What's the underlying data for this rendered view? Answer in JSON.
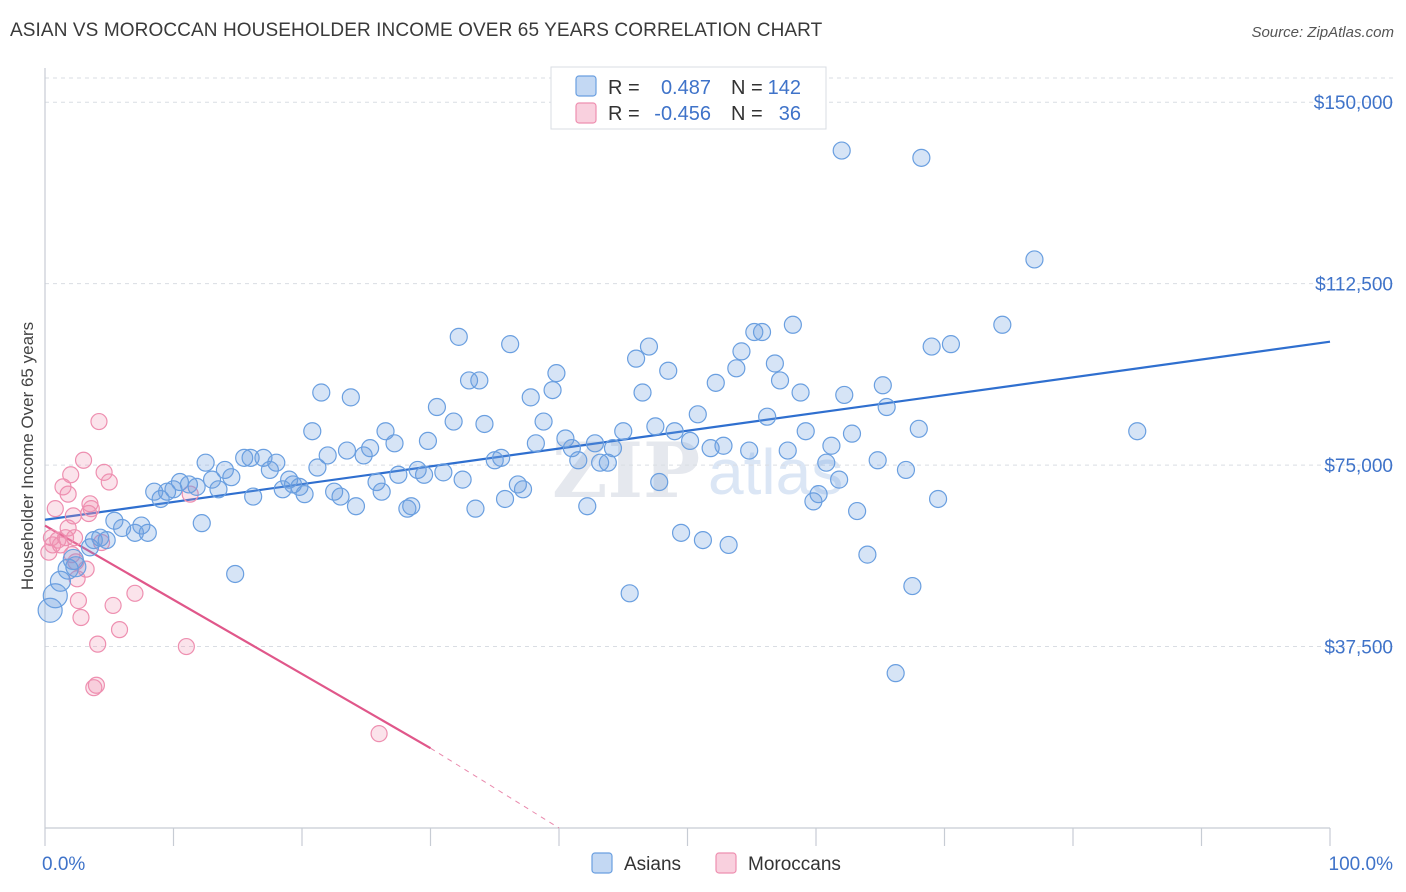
{
  "header": {
    "title": "ASIAN VS MOROCCAN HOUSEHOLDER INCOME OVER 65 YEARS CORRELATION CHART",
    "source": "Source: ZipAtlas.com"
  },
  "watermark": {
    "zip": "ZIP",
    "atlas": "atlas"
  },
  "colors": {
    "asian": "#6a9fe0",
    "asian_line": "#2f6fcf",
    "moroccan": "#ee8fb0",
    "moroccan_line": "#e0578a",
    "grid": "#d9dde3",
    "axis_label": "#3f73c9"
  },
  "legend": {
    "rows": [
      {
        "r_label": "R =",
        "r_value": "0.487",
        "n_label": "N =",
        "n_value": "142"
      },
      {
        "r_label": "R =",
        "r_value": "-0.456",
        "n_label": "N =",
        "n_value": "36"
      }
    ]
  },
  "bottom_legend": {
    "asians": "Asians",
    "moroccans": "Moroccans"
  },
  "chart_data": {
    "type": "scatter",
    "title": "ASIAN VS MOROCCAN HOUSEHOLDER INCOME OVER 65 YEARS CORRELATION CHART",
    "xlabel": "",
    "ylabel": "Householder Income Over 65 years",
    "xlim": [
      0,
      100
    ],
    "ylim": [
      0,
      155000
    ],
    "x_tick_labels": [
      "0.0%",
      "100.0%"
    ],
    "y_ticks": [
      37500,
      75000,
      112500,
      150000
    ],
    "y_tick_labels": [
      "$37,500",
      "$75,000",
      "$112,500",
      "$150,000"
    ],
    "grid": true,
    "legend_placement": "top-center",
    "series": [
      {
        "name": "Asians",
        "r": 0.487,
        "n": 142,
        "trend": {
          "x": [
            0,
            100
          ],
          "y": [
            63700,
            100500
          ]
        },
        "points": [
          [
            0.4,
            45000
          ],
          [
            0.8,
            48000
          ],
          [
            1.2,
            51000
          ],
          [
            1.8,
            53500
          ],
          [
            2.2,
            55500
          ],
          [
            2.4,
            54000
          ],
          [
            3.5,
            58000
          ],
          [
            3.8,
            59500
          ],
          [
            4.3,
            60000
          ],
          [
            4.8,
            59500
          ],
          [
            5.4,
            63500
          ],
          [
            6.0,
            62000
          ],
          [
            7.0,
            61000
          ],
          [
            7.5,
            62500
          ],
          [
            8.0,
            61000
          ],
          [
            8.5,
            69500
          ],
          [
            9.0,
            68000
          ],
          [
            9.5,
            69500
          ],
          [
            10.0,
            70000
          ],
          [
            10.5,
            71500
          ],
          [
            11.2,
            71000
          ],
          [
            11.8,
            70500
          ],
          [
            12.2,
            63000
          ],
          [
            12.5,
            75500
          ],
          [
            13.0,
            72000
          ],
          [
            13.5,
            70000
          ],
          [
            14.0,
            74000
          ],
          [
            14.5,
            72500
          ],
          [
            14.8,
            52500
          ],
          [
            15.5,
            76500
          ],
          [
            16.0,
            76500
          ],
          [
            16.2,
            68500
          ],
          [
            17.0,
            76500
          ],
          [
            17.5,
            74000
          ],
          [
            18.0,
            75500
          ],
          [
            18.5,
            70000
          ],
          [
            19.0,
            72000
          ],
          [
            19.3,
            71000
          ],
          [
            19.8,
            70500
          ],
          [
            20.2,
            69000
          ],
          [
            20.8,
            82000
          ],
          [
            21.2,
            74500
          ],
          [
            21.5,
            90000
          ],
          [
            22.0,
            77000
          ],
          [
            22.5,
            69500
          ],
          [
            23.0,
            68500
          ],
          [
            23.5,
            78000
          ],
          [
            23.8,
            89000
          ],
          [
            24.2,
            66500
          ],
          [
            24.8,
            77000
          ],
          [
            25.3,
            78500
          ],
          [
            25.8,
            71500
          ],
          [
            26.2,
            69500
          ],
          [
            26.5,
            82000
          ],
          [
            27.2,
            79500
          ],
          [
            27.5,
            73000
          ],
          [
            28.2,
            66000
          ],
          [
            28.5,
            66500
          ],
          [
            29.0,
            74000
          ],
          [
            29.5,
            73000
          ],
          [
            29.8,
            80000
          ],
          [
            30.5,
            87000
          ],
          [
            31.0,
            73500
          ],
          [
            31.8,
            84000
          ],
          [
            32.2,
            101500
          ],
          [
            32.5,
            72000
          ],
          [
            33.0,
            92500
          ],
          [
            33.5,
            66000
          ],
          [
            33.8,
            92500
          ],
          [
            34.2,
            83500
          ],
          [
            35.0,
            76000
          ],
          [
            35.5,
            76500
          ],
          [
            35.8,
            68000
          ],
          [
            36.2,
            100000
          ],
          [
            36.8,
            71000
          ],
          [
            37.2,
            70000
          ],
          [
            37.8,
            89000
          ],
          [
            38.2,
            79500
          ],
          [
            38.8,
            84000
          ],
          [
            39.5,
            90500
          ],
          [
            39.8,
            94000
          ],
          [
            40.5,
            80500
          ],
          [
            41.0,
            78500
          ],
          [
            41.5,
            76000
          ],
          [
            42.2,
            66500
          ],
          [
            42.8,
            79500
          ],
          [
            43.2,
            75500
          ],
          [
            43.8,
            75500
          ],
          [
            44.2,
            78500
          ],
          [
            45.0,
            82000
          ],
          [
            45.5,
            48500
          ],
          [
            46.0,
            97000
          ],
          [
            46.5,
            90000
          ],
          [
            47.0,
            99500
          ],
          [
            47.5,
            83000
          ],
          [
            47.8,
            71500
          ],
          [
            48.5,
            94500
          ],
          [
            49.0,
            82000
          ],
          [
            49.5,
            61000
          ],
          [
            50.2,
            80000
          ],
          [
            50.8,
            85500
          ],
          [
            51.2,
            59500
          ],
          [
            51.8,
            78500
          ],
          [
            52.2,
            92000
          ],
          [
            52.8,
            79000
          ],
          [
            53.2,
            58500
          ],
          [
            53.8,
            95000
          ],
          [
            54.2,
            98500
          ],
          [
            54.8,
            78000
          ],
          [
            55.2,
            102500
          ],
          [
            55.8,
            102500
          ],
          [
            56.2,
            85000
          ],
          [
            56.8,
            96000
          ],
          [
            57.2,
            92500
          ],
          [
            57.8,
            78000
          ],
          [
            58.2,
            104000
          ],
          [
            58.8,
            90000
          ],
          [
            59.2,
            82000
          ],
          [
            59.8,
            67500
          ],
          [
            60.2,
            69000
          ],
          [
            60.8,
            75500
          ],
          [
            61.2,
            79000
          ],
          [
            61.8,
            72000
          ],
          [
            62.2,
            89500
          ],
          [
            62.8,
            81500
          ],
          [
            63.2,
            65500
          ],
          [
            64.0,
            56500
          ],
          [
            64.8,
            76000
          ],
          [
            65.2,
            91500
          ],
          [
            65.5,
            87000
          ],
          [
            66.2,
            32000
          ],
          [
            67.0,
            74000
          ],
          [
            67.5,
            50000
          ],
          [
            68.0,
            82500
          ],
          [
            69.0,
            99500
          ],
          [
            69.5,
            68000
          ],
          [
            70.5,
            100000
          ],
          [
            74.5,
            104000
          ],
          [
            77.0,
            117500
          ],
          [
            85.0,
            82000
          ],
          [
            62.0,
            140000
          ],
          [
            68.2,
            138500
          ]
        ]
      },
      {
        "name": "Moroccans",
        "r": -0.456,
        "n": 36,
        "trend": {
          "x": [
            0,
            30
          ],
          "y": [
            62500,
            16500
          ]
        },
        "trend_dashed": {
          "x": [
            30,
            40
          ],
          "y": [
            16500,
            0
          ]
        },
        "points": [
          [
            0.3,
            57000
          ],
          [
            0.5,
            60000
          ],
          [
            0.6,
            58500
          ],
          [
            0.8,
            66000
          ],
          [
            1.0,
            59500
          ],
          [
            1.2,
            58500
          ],
          [
            1.4,
            70500
          ],
          [
            1.6,
            60000
          ],
          [
            1.8,
            69000
          ],
          [
            1.8,
            62000
          ],
          [
            2.0,
            73000
          ],
          [
            2.1,
            56500
          ],
          [
            2.2,
            64500
          ],
          [
            2.3,
            60000
          ],
          [
            2.4,
            55000
          ],
          [
            2.5,
            51500
          ],
          [
            2.6,
            47000
          ],
          [
            2.8,
            43500
          ],
          [
            3.0,
            76000
          ],
          [
            3.2,
            53500
          ],
          [
            3.4,
            65000
          ],
          [
            3.5,
            67000
          ],
          [
            3.6,
            66000
          ],
          [
            3.8,
            29000
          ],
          [
            4.0,
            29500
          ],
          [
            4.1,
            38000
          ],
          [
            4.2,
            84000
          ],
          [
            4.4,
            59000
          ],
          [
            4.6,
            73500
          ],
          [
            5.0,
            71500
          ],
          [
            5.3,
            46000
          ],
          [
            5.8,
            41000
          ],
          [
            7.0,
            48500
          ],
          [
            11.0,
            37500
          ],
          [
            11.3,
            69000
          ],
          [
            26.0,
            19500
          ]
        ]
      }
    ]
  }
}
